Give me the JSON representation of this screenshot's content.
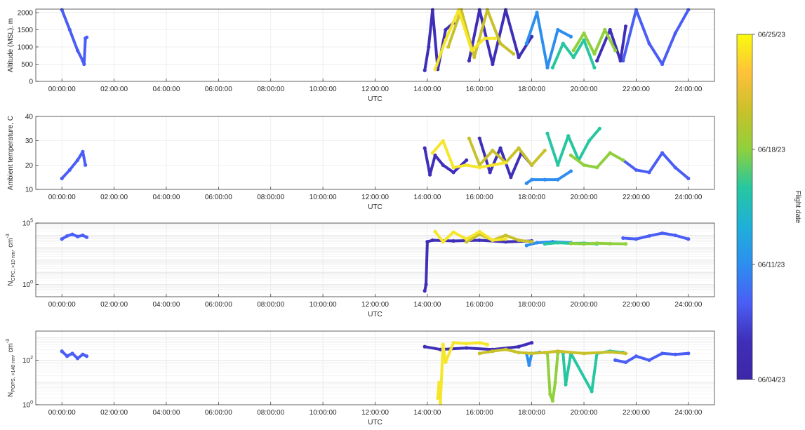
{
  "chart_data": [
    {
      "type": "scatter",
      "ylabel": "Altitude (MSL), m",
      "xlabel": "UTC",
      "xlim_hours": [
        -1,
        25
      ],
      "ylim": [
        0,
        2100
      ],
      "yscale": "linear",
      "yticks": [
        0,
        500,
        1000,
        1500,
        2000
      ],
      "xticks": [
        "00:00:00",
        "02:00:00",
        "04:00:00",
        "06:00:00",
        "08:00:00",
        "10:00:00",
        "12:00:00",
        "14:00:00",
        "16:00:00",
        "18:00:00",
        "20:00:00",
        "22:00:00",
        "24:00:00"
      ],
      "grid": true,
      "series": [
        {
          "color": "#4a5ef5",
          "x": [
            0,
            0.3,
            0.6,
            0.8,
            0.85,
            0.9,
            0.95
          ],
          "y": [
            2080,
            1500,
            900,
            600,
            500,
            1250,
            1280
          ]
        },
        {
          "color": "#4a5ef5",
          "x": [
            21.5,
            22.0,
            22.5,
            23.0,
            23.5,
            24.0
          ],
          "y": [
            600,
            2080,
            1100,
            500,
            1400,
            2080
          ]
        },
        {
          "color": "#3f2fb8",
          "x": [
            13.9,
            14.05,
            14.2,
            14.4,
            14.7,
            15.0
          ],
          "y": [
            320,
            1000,
            2080,
            350,
            1500,
            1700
          ]
        },
        {
          "color": "#3f2fb8",
          "x": [
            15.6,
            16.0,
            16.5,
            17.0,
            17.5,
            18.0
          ],
          "y": [
            600,
            2080,
            500,
            2080,
            700,
            1300
          ]
        },
        {
          "color": "#3f2fb8",
          "x": [
            20.5,
            21.0,
            21.4,
            21.6
          ],
          "y": [
            600,
            1500,
            600,
            1600
          ]
        },
        {
          "color": "#2d8ef0",
          "x": [
            17.8,
            18.2,
            18.6,
            19.0,
            19.5
          ],
          "y": [
            1100,
            2000,
            400,
            1500,
            1300
          ]
        },
        {
          "color": "#26c7a0",
          "x": [
            18.8,
            19.2,
            19.6,
            20.0,
            20.4
          ],
          "y": [
            400,
            1100,
            700,
            1200,
            400
          ]
        },
        {
          "color": "#8fd03c",
          "x": [
            19.6,
            20.0,
            20.4,
            20.8,
            21.2
          ],
          "y": [
            900,
            1400,
            800,
            1500,
            900
          ]
        },
        {
          "color": "#c9c12a",
          "x": [
            14.8,
            15.3,
            15.8,
            16.3,
            16.8,
            17.3
          ],
          "y": [
            1000,
            2080,
            700,
            2080,
            1100,
            800
          ]
        },
        {
          "color": "#f6e62b",
          "x": [
            14.3,
            14.7,
            15.2,
            15.7,
            16.2,
            16.6
          ],
          "y": [
            350,
            1200,
            2080,
            900,
            1250,
            1250
          ]
        }
      ]
    },
    {
      "type": "scatter",
      "ylabel": "Ambient temperature, C",
      "xlabel": "UTC",
      "xlim_hours": [
        -1,
        25
      ],
      "ylim": [
        10,
        40
      ],
      "yscale": "linear",
      "yticks": [
        10,
        20,
        30,
        40
      ],
      "xticks": [
        "00:00:00",
        "02:00:00",
        "04:00:00",
        "06:00:00",
        "08:00:00",
        "10:00:00",
        "12:00:00",
        "14:00:00",
        "16:00:00",
        "18:00:00",
        "20:00:00",
        "22:00:00",
        "24:00:00"
      ],
      "grid": true,
      "series": [
        {
          "color": "#4a5ef5",
          "x": [
            0,
            0.3,
            0.6,
            0.8,
            0.9
          ],
          "y": [
            14.5,
            18,
            22,
            25.5,
            20
          ]
        },
        {
          "color": "#4a5ef5",
          "x": [
            21.5,
            22.0,
            22.5,
            23.0,
            23.5,
            24.0
          ],
          "y": [
            22,
            18,
            17,
            25,
            19,
            14.5
          ]
        },
        {
          "color": "#3f2fb8",
          "x": [
            13.9,
            14.1,
            14.3,
            14.6,
            15.0,
            15.5
          ],
          "y": [
            27,
            16,
            24,
            20,
            17,
            22
          ]
        },
        {
          "color": "#3f2fb8",
          "x": [
            16.0,
            16.4,
            16.8,
            17.2,
            17.6,
            18.0
          ],
          "y": [
            31,
            17,
            27,
            15,
            25,
            20
          ]
        },
        {
          "color": "#2d8ef0",
          "x": [
            17.8,
            18.0,
            18.5,
            19.0,
            19.5
          ],
          "y": [
            12.5,
            14,
            14,
            14,
            17.5
          ]
        },
        {
          "color": "#26c7a0",
          "x": [
            18.6,
            19.0,
            19.4,
            19.8,
            20.2,
            20.6
          ],
          "y": [
            33,
            20,
            32,
            22,
            30,
            35
          ]
        },
        {
          "color": "#8fd03c",
          "x": [
            19.5,
            20.0,
            20.5,
            21.0,
            21.5
          ],
          "y": [
            24,
            20,
            19,
            25,
            22
          ]
        },
        {
          "color": "#c9c12a",
          "x": [
            15.6,
            16.0,
            16.5,
            17.0,
            17.5,
            18.0,
            18.5
          ],
          "y": [
            31,
            20,
            26,
            21,
            27,
            20,
            26
          ]
        },
        {
          "color": "#f6e62b",
          "x": [
            14.2,
            14.6,
            15.0,
            15.5,
            16.0,
            16.5,
            17.0
          ],
          "y": [
            25,
            30,
            19,
            20,
            19,
            20,
            21
          ]
        }
      ]
    },
    {
      "type": "scatter",
      "ylabel": "N_CPC, >10 nm, cm^-3",
      "xlabel": "UTC",
      "xlim_hours": [
        -1,
        25
      ],
      "ylim": [
        0.1,
        100000
      ],
      "yscale": "log",
      "yticks": [
        1,
        100000
      ],
      "ytick_labels": [
        "10^0",
        "10^5"
      ],
      "xticks": [
        "00:00:00",
        "02:00:00",
        "04:00:00",
        "06:00:00",
        "08:00:00",
        "10:00:00",
        "12:00:00",
        "14:00:00",
        "16:00:00",
        "18:00:00",
        "20:00:00",
        "22:00:00",
        "24:00:00"
      ],
      "grid": true,
      "series": [
        {
          "color": "#4a5ef5",
          "x": [
            0,
            0.2,
            0.4,
            0.6,
            0.8,
            0.95
          ],
          "y": [
            5000,
            9000,
            12000,
            8000,
            10000,
            7000
          ]
        },
        {
          "color": "#4a5ef5",
          "x": [
            21.5,
            22.0,
            22.5,
            23.0,
            23.5,
            24.0
          ],
          "y": [
            6000,
            5000,
            9000,
            15000,
            10000,
            5000
          ]
        },
        {
          "color": "#3f2fb8",
          "x": [
            13.9,
            13.95,
            14.0,
            14.2,
            15.0,
            16.0,
            17.0,
            18.0
          ],
          "y": [
            0.3,
            1,
            3000,
            4000,
            3500,
            4000,
            3000,
            3500
          ]
        },
        {
          "color": "#2d8ef0",
          "x": [
            17.8,
            18.2,
            18.8,
            19.5
          ],
          "y": [
            1500,
            2500,
            3000,
            2500
          ]
        },
        {
          "color": "#26c7a0",
          "x": [
            18.5,
            19.0,
            19.5,
            20.0,
            20.5
          ],
          "y": [
            2000,
            2500,
            2200,
            2300,
            2000
          ]
        },
        {
          "color": "#8fd03c",
          "x": [
            19.5,
            20.0,
            20.5,
            21.0,
            21.6
          ],
          "y": [
            2200,
            2000,
            2300,
            2100,
            2000
          ]
        },
        {
          "color": "#c9c12a",
          "x": [
            15.5,
            16.0,
            16.5,
            17.0,
            17.5,
            18.0
          ],
          "y": [
            3000,
            12000,
            4000,
            10000,
            4000,
            3000
          ]
        },
        {
          "color": "#f6e62b",
          "x": [
            14.3,
            14.6,
            15.0,
            15.5,
            16.0,
            16.5,
            17.0
          ],
          "y": [
            20000,
            3000,
            18000,
            5000,
            20000,
            4000,
            5000
          ]
        }
      ]
    },
    {
      "type": "scatter",
      "ylabel": "N_POPS, >140 nm, cm^-3",
      "xlabel": "UTC",
      "xlim_hours": [
        -1,
        25
      ],
      "ylim": [
        1,
        2000
      ],
      "yscale": "log",
      "yticks": [
        1,
        100
      ],
      "ytick_labels": [
        "10^0",
        "10^2"
      ],
      "xticks": [
        "00:00:00",
        "02:00:00",
        "04:00:00",
        "06:00:00",
        "08:00:00",
        "10:00:00",
        "12:00:00",
        "14:00:00",
        "16:00:00",
        "18:00:00",
        "20:00:00",
        "22:00:00",
        "24:00:00"
      ],
      "grid": true,
      "series": [
        {
          "color": "#4a5ef5",
          "x": [
            0,
            0.2,
            0.4,
            0.6,
            0.8,
            0.95
          ],
          "y": [
            250,
            150,
            200,
            120,
            180,
            150
          ]
        },
        {
          "color": "#4a5ef5",
          "x": [
            21.2,
            21.6,
            22.0,
            22.5,
            23.0,
            23.5,
            24.0
          ],
          "y": [
            100,
            80,
            150,
            100,
            200,
            180,
            200
          ]
        },
        {
          "color": "#3f2fb8",
          "x": [
            13.9,
            14.5,
            15.5,
            16.5,
            17.5,
            18.0
          ],
          "y": [
            400,
            300,
            350,
            300,
            400,
            600
          ]
        },
        {
          "color": "#2d8ef0",
          "x": [
            17.8,
            17.9,
            18.0,
            18.3
          ],
          "y": [
            200,
            60,
            200,
            220
          ]
        },
        {
          "color": "#8fd03c",
          "x": [
            18.6,
            18.7,
            18.8,
            18.9,
            19.0
          ],
          "y": [
            200,
            3,
            1.5,
            10,
            200
          ]
        },
        {
          "color": "#26c7a0",
          "x": [
            19.2,
            19.3,
            19.5,
            20.3,
            20.5,
            21.0,
            21.5
          ],
          "y": [
            200,
            8,
            200,
            4,
            200,
            250,
            220
          ]
        },
        {
          "color": "#c9c12a",
          "x": [
            16.0,
            16.5,
            17.0,
            17.5,
            18.0,
            18.5,
            19.0,
            20.0,
            21.0,
            21.6
          ],
          "y": [
            200,
            250,
            300,
            220,
            200,
            220,
            250,
            200,
            230,
            200
          ]
        },
        {
          "color": "#f6e62b",
          "x": [
            14.4,
            14.45,
            14.5,
            14.6,
            14.7,
            15.0,
            15.5,
            16.0,
            16.3
          ],
          "y": [
            2,
            10,
            1.2,
            500,
            80,
            600,
            550,
            600,
            500
          ]
        }
      ]
    }
  ],
  "colorbar": {
    "label": "Flight date",
    "ticks": [
      "06/25/23",
      "06/18/23",
      "06/11/23",
      "06/04/23"
    ],
    "gradient": [
      "#f9fb0e",
      "#fec13a",
      "#c9c12a",
      "#8fd03c",
      "#26c7a0",
      "#1fb0d8",
      "#2d8ef0",
      "#4a5ef5",
      "#3f2fb8",
      "#3e26a8"
    ]
  }
}
